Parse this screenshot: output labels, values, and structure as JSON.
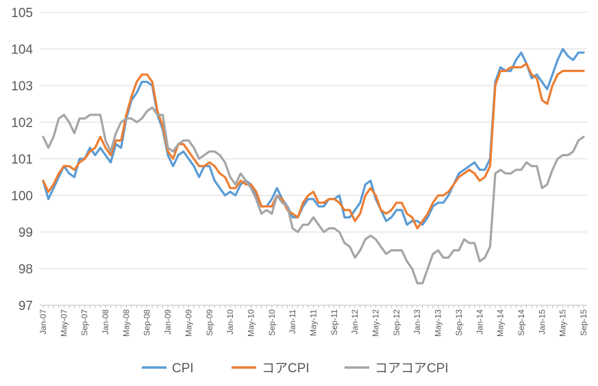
{
  "chart_data": {
    "type": "line",
    "title": "",
    "xlabel": "",
    "ylabel": "",
    "ylim": [
      97,
      105
    ],
    "yticks": [
      97,
      98,
      99,
      100,
      101,
      102,
      103,
      104,
      105
    ],
    "grid": true,
    "legend_position": "bottom",
    "x_tick_labels": [
      "Jan-07",
      "May-07",
      "Sep-07",
      "Jan-08",
      "May-08",
      "Sep-08",
      "Jan-09",
      "May-09",
      "Sep-09",
      "Jan-10",
      "May-10",
      "Sep-10",
      "Jan-11",
      "May-11",
      "Sep-11",
      "Jan-12",
      "May-12",
      "Sep-12",
      "Jan-13",
      "May-13",
      "Sep-13",
      "Jan-14",
      "May-14",
      "Sep-14",
      "Jan-15",
      "May-15",
      "Sep-15"
    ],
    "x_tick_every": 4,
    "series": [
      {
        "name": "CPI",
        "color": "#5B9BD5",
        "values": [
          100.4,
          99.9,
          100.2,
          100.5,
          100.8,
          100.6,
          100.5,
          101.0,
          101.0,
          101.3,
          101.1,
          101.3,
          101.1,
          100.9,
          101.4,
          101.3,
          102.1,
          102.6,
          102.8,
          103.1,
          103.1,
          103.0,
          102.2,
          101.8,
          101.1,
          100.8,
          101.1,
          101.2,
          101.0,
          100.8,
          100.5,
          100.8,
          100.8,
          100.4,
          100.2,
          100.0,
          100.1,
          100.0,
          100.3,
          100.4,
          100.3,
          100.0,
          99.7,
          99.7,
          99.9,
          100.2,
          99.9,
          99.7,
          99.4,
          99.4,
          99.7,
          99.9,
          99.9,
          99.7,
          99.7,
          99.9,
          99.9,
          100.0,
          99.4,
          99.4,
          99.6,
          99.8,
          100.3,
          100.4,
          99.9,
          99.6,
          99.3,
          99.4,
          99.6,
          99.6,
          99.2,
          99.3,
          99.3,
          99.2,
          99.4,
          99.7,
          99.8,
          99.8,
          100.0,
          100.3,
          100.6,
          100.7,
          100.8,
          100.9,
          100.7,
          100.7,
          101.0,
          103.1,
          103.5,
          103.4,
          103.4,
          103.7,
          103.9,
          103.6,
          103.2,
          103.3,
          103.1,
          102.9,
          103.3,
          103.7,
          104.0,
          103.8,
          103.7,
          103.9,
          103.9
        ]
      },
      {
        "name": "コアCPI",
        "color": "#ED7D31",
        "values": [
          100.4,
          100.1,
          100.3,
          100.6,
          100.8,
          100.8,
          100.7,
          100.9,
          101.0,
          101.2,
          101.3,
          101.6,
          101.3,
          101.1,
          101.5,
          101.5,
          102.2,
          102.7,
          103.1,
          103.3,
          103.3,
          103.1,
          102.3,
          101.9,
          101.2,
          101.0,
          101.4,
          101.4,
          101.2,
          101.0,
          100.8,
          100.8,
          100.9,
          100.8,
          100.6,
          100.5,
          100.2,
          100.2,
          100.4,
          100.3,
          100.3,
          100.1,
          99.7,
          99.7,
          99.7,
          100.0,
          99.9,
          99.6,
          99.5,
          99.4,
          99.8,
          100.0,
          100.1,
          99.8,
          99.8,
          99.9,
          99.9,
          99.8,
          99.6,
          99.6,
          99.3,
          99.5,
          100.0,
          100.2,
          100.0,
          99.6,
          99.5,
          99.6,
          99.8,
          99.8,
          99.5,
          99.4,
          99.1,
          99.3,
          99.5,
          99.8,
          100.0,
          100.0,
          100.1,
          100.3,
          100.5,
          100.6,
          100.7,
          100.6,
          100.4,
          100.5,
          100.8,
          103.0,
          103.4,
          103.4,
          103.5,
          103.5,
          103.5,
          103.6,
          103.3,
          103.2,
          102.6,
          102.5,
          103.0,
          103.3,
          103.4,
          103.4,
          103.4,
          103.4,
          103.4
        ]
      },
      {
        "name": "コアコアCPI",
        "color": "#A5A5A5",
        "values": [
          101.6,
          101.3,
          101.6,
          102.1,
          102.2,
          102.0,
          101.7,
          102.1,
          102.1,
          102.2,
          102.2,
          102.2,
          101.5,
          101.2,
          101.7,
          102.0,
          102.1,
          102.1,
          102.0,
          102.1,
          102.3,
          102.4,
          102.2,
          102.2,
          101.3,
          101.2,
          101.4,
          101.5,
          101.5,
          101.3,
          101.0,
          101.1,
          101.2,
          101.2,
          101.1,
          100.9,
          100.5,
          100.3,
          100.6,
          100.4,
          100.2,
          99.9,
          99.5,
          99.6,
          99.5,
          100.0,
          99.8,
          99.7,
          99.1,
          99.0,
          99.2,
          99.2,
          99.4,
          99.2,
          99.0,
          99.1,
          99.1,
          99.0,
          98.7,
          98.6,
          98.3,
          98.5,
          98.8,
          98.9,
          98.8,
          98.6,
          98.4,
          98.5,
          98.5,
          98.5,
          98.2,
          98.0,
          97.6,
          97.6,
          98.0,
          98.4,
          98.5,
          98.3,
          98.3,
          98.5,
          98.5,
          98.8,
          98.7,
          98.7,
          98.2,
          98.3,
          98.6,
          100.6,
          100.7,
          100.6,
          100.6,
          100.7,
          100.7,
          100.9,
          100.8,
          100.8,
          100.2,
          100.3,
          100.7,
          101.0,
          101.1,
          101.1,
          101.2,
          101.5,
          101.6
        ]
      }
    ]
  }
}
